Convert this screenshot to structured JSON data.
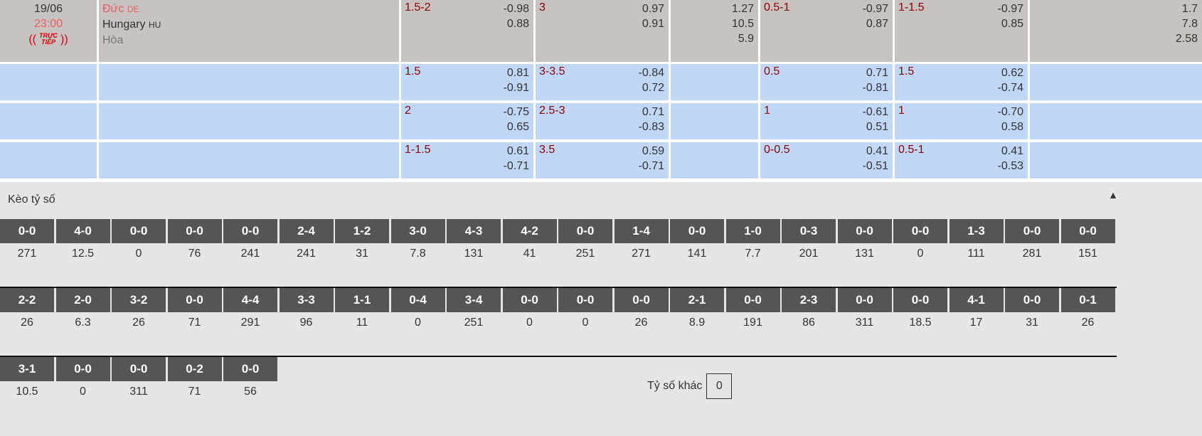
{
  "match": {
    "date": "19/06",
    "time": "23:00",
    "live_badge": "TRỰC TIẾP",
    "home": "Đức",
    "home_code": "DE",
    "away": "Hungary",
    "away_code": "HU",
    "draw": "Hòa"
  },
  "main_row": [
    {
      "label": "1.5-2",
      "values": [
        "-0.98",
        "0.88"
      ]
    },
    {
      "label": "3",
      "values": [
        "0.97",
        "0.91"
      ]
    },
    {
      "label": "",
      "values": [
        "1.27",
        "10.5",
        "5.9"
      ]
    },
    {
      "label": "0.5-1",
      "values": [
        "-0.97",
        "0.87"
      ]
    },
    {
      "label": "1-1.5",
      "values": [
        "-0.97",
        "0.85"
      ]
    },
    {
      "label": "",
      "values": [
        "1.7",
        "7.8",
        "2.58"
      ]
    }
  ],
  "extra_rows": [
    [
      {
        "label": "1.5",
        "values": [
          "0.81",
          "-0.91"
        ]
      },
      {
        "label": "3-3.5",
        "values": [
          "-0.84",
          "0.72"
        ]
      },
      {
        "label": "",
        "values": []
      },
      {
        "label": "0.5",
        "values": [
          "0.71",
          "-0.81"
        ]
      },
      {
        "label": "1.5",
        "values": [
          "0.62",
          "-0.74"
        ]
      },
      {
        "label": "",
        "values": []
      }
    ],
    [
      {
        "label": "2",
        "values": [
          "-0.75",
          "0.65"
        ]
      },
      {
        "label": "2.5-3",
        "values": [
          "0.71",
          "-0.83"
        ]
      },
      {
        "label": "",
        "values": []
      },
      {
        "label": "1",
        "values": [
          "-0.61",
          "0.51"
        ]
      },
      {
        "label": "1",
        "values": [
          "-0.70",
          "0.58"
        ]
      },
      {
        "label": "",
        "values": []
      }
    ],
    [
      {
        "label": "1-1.5",
        "values": [
          "0.61",
          "-0.71"
        ]
      },
      {
        "label": "3.5",
        "values": [
          "0.59",
          "-0.71"
        ]
      },
      {
        "label": "",
        "values": []
      },
      {
        "label": "0-0.5",
        "values": [
          "0.41",
          "-0.51"
        ]
      },
      {
        "label": "0.5-1",
        "values": [
          "0.41",
          "-0.53"
        ]
      },
      {
        "label": "",
        "values": []
      }
    ]
  ],
  "score_section": {
    "title": "Kèo tỷ số",
    "toggle_icon": "triangle-up",
    "other_label": "Tỷ số khác",
    "other_value": "0",
    "rows": [
      [
        [
          "0-0",
          "271"
        ],
        [
          "4-0",
          "12.5"
        ],
        [
          "0-0",
          "0"
        ],
        [
          "0-0",
          "76"
        ],
        [
          "0-0",
          "241"
        ],
        [
          "2-4",
          "241"
        ],
        [
          "1-2",
          "31"
        ],
        [
          "3-0",
          "7.8"
        ],
        [
          "4-3",
          "131"
        ],
        [
          "4-2",
          "41"
        ],
        [
          "0-0",
          "251"
        ],
        [
          "1-4",
          "271"
        ],
        [
          "0-0",
          "141"
        ],
        [
          "1-0",
          "7.7"
        ],
        [
          "0-3",
          "201"
        ],
        [
          "0-0",
          "131"
        ],
        [
          "0-0",
          "0"
        ],
        [
          "1-3",
          "111"
        ],
        [
          "0-0",
          "281"
        ],
        [
          "0-0",
          "151"
        ]
      ],
      [
        [
          "2-2",
          "26"
        ],
        [
          "2-0",
          "6.3"
        ],
        [
          "3-2",
          "26"
        ],
        [
          "0-0",
          "71"
        ],
        [
          "4-4",
          "291"
        ],
        [
          "3-3",
          "96"
        ],
        [
          "1-1",
          "11"
        ],
        [
          "0-4",
          "0"
        ],
        [
          "3-4",
          "251"
        ],
        [
          "0-0",
          "0"
        ],
        [
          "0-0",
          "0"
        ],
        [
          "0-0",
          "26"
        ],
        [
          "2-1",
          "8.9"
        ],
        [
          "0-0",
          "191"
        ],
        [
          "2-3",
          "86"
        ],
        [
          "0-0",
          "311"
        ],
        [
          "0-0",
          "18.5"
        ],
        [
          "4-1",
          "17"
        ],
        [
          "0-0",
          "31"
        ],
        [
          "0-1",
          "26"
        ]
      ],
      [
        [
          "3-1",
          "10.5"
        ],
        [
          "0-0",
          "0"
        ],
        [
          "0-0",
          "311"
        ],
        [
          "0-2",
          "71"
        ],
        [
          "0-0",
          "56"
        ]
      ]
    ]
  },
  "colors": {
    "header_bg": "#c8c2c1",
    "alt_bg": "#c1d7f7",
    "handicap": "#8b0000",
    "home": "#e86060",
    "score_header": "#555555"
  }
}
